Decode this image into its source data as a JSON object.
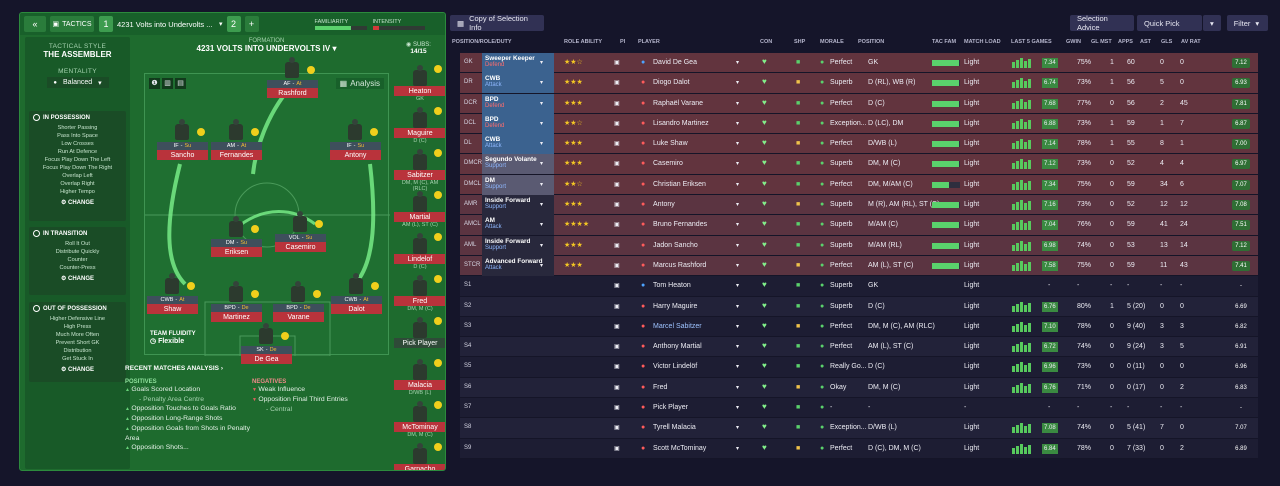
{
  "top": {
    "tactics": "TACTICS",
    "slot1": "1",
    "tactic_name": "4231 Volts into Undervolts ...",
    "slot2": "2",
    "familiarity": "FAMILIARITY",
    "intensity": "INTENSITY"
  },
  "rail": {
    "style_label": "TACTICAL STYLE",
    "style": "THE ASSEMBLER",
    "mentality_label": "MENTALITY",
    "mentality": "Balanced",
    "possession": {
      "title": "IN POSSESSION",
      "items": [
        "Shorter Passing",
        "Pass Into Space",
        "Low Crosses",
        "Run At Defence",
        "Focus Play Down The Left",
        "Focus Play Down The Right",
        "Overlap Left",
        "Overlap Right",
        "Higher Tempo"
      ]
    },
    "transition": {
      "title": "IN TRANSITION",
      "items": [
        "Roll It Out",
        "Distribute Quickly",
        "Counter",
        "Counter-Press"
      ]
    },
    "out": {
      "title": "OUT OF POSSESSION",
      "items": [
        "Higher Defensive Line",
        "High Press",
        "Much More Often",
        "Prevent Short GK",
        "Distribution",
        "Get Stuck In"
      ]
    },
    "change": "CHANGE"
  },
  "pitch": {
    "formation_label": "FORMATION",
    "formation": "4231 VOLTS INTO UNDERVOLTS IV",
    "subs_label": "SUBS:",
    "subs": "14/15",
    "analysis": "Analysis",
    "fluidity_label": "TEAM FLUIDITY",
    "fluidity": "Flexible",
    "players": [
      {
        "role": "AF",
        "duty": "At",
        "name": "Rashford"
      },
      {
        "role": "IF",
        "duty": "Su",
        "name": "Sancho"
      },
      {
        "role": "AM",
        "duty": "At",
        "name": "Fernandes"
      },
      {
        "role": "IF",
        "duty": "Su",
        "name": "Antony"
      },
      {
        "role": "DM",
        "duty": "Su",
        "name": "Eriksen"
      },
      {
        "role": "VOL",
        "duty": "Su",
        "name": "Casemiro"
      },
      {
        "role": "CWB",
        "duty": "At",
        "name": "Shaw"
      },
      {
        "role": "BPD",
        "duty": "De",
        "name": "Martinez"
      },
      {
        "role": "BPD",
        "duty": "De",
        "name": "Varane"
      },
      {
        "role": "CWB",
        "duty": "At",
        "name": "Dalot"
      },
      {
        "role": "SK",
        "duty": "De",
        "name": "De Gea"
      }
    ]
  },
  "subs": [
    {
      "name": "Heaton",
      "pos": "GK"
    },
    {
      "name": "Maguire",
      "pos": "D (C)"
    },
    {
      "name": "Sabitzer",
      "pos": "DM, M (C), AM (RLC)"
    },
    {
      "name": "Martial",
      "pos": "AM (L), ST (C)"
    },
    {
      "name": "Lindelof",
      "pos": "D (C)"
    },
    {
      "name": "Fred",
      "pos": "DM, M (C)"
    },
    {
      "name": "Pick Player",
      "pos": ""
    },
    {
      "name": "Malacia",
      "pos": "D/WB (L)"
    },
    {
      "name": "McTominay",
      "pos": "DM, M (C)"
    },
    {
      "name": "Garnacho",
      "pos": ""
    }
  ],
  "analysis": {
    "title": "RECENT MATCHES ANALYSIS",
    "pos_label": "POSITIVES",
    "neg_label": "NEGATIVES",
    "positives": [
      "Goals Scored Location",
      "- Penalty Area Centre",
      "Opposition Touches to Goals Ratio",
      "Opposition Long-Range Shots",
      "Opposition Goals from Shots in Penalty Area",
      "Opposition Shots..."
    ],
    "negatives": [
      "Weak Influence",
      "Opposition Final Third Entries",
      "- Central"
    ]
  },
  "rtoolbar": {
    "view": "Copy of Selection Info",
    "advice": "Selection Advice",
    "quick": "Quick Pick",
    "filter": "Filter"
  },
  "headers": [
    "POSITION/ROLE/DUTY",
    "ROLE ABILITY",
    "PI",
    "PLAYER",
    "CON",
    "SHP",
    "MORALE",
    "POSITION",
    "TAC FAM",
    "MATCH LOAD",
    "LAST 5 GAMES",
    "GWIN",
    "GL MST",
    "APPS",
    "AST",
    "GLS",
    "AV RAT"
  ],
  "rows": [
    {
      "pos": "GK",
      "role": "Sweeper Keeper",
      "duty": "Defend",
      "stars": "★★☆",
      "player": "David De Gea",
      "morale": "Perfect",
      "position": "GK",
      "load": "Light",
      "gwin": "75%",
      "glmst": "1",
      "apps": "60",
      "ast": "0",
      "gls": "0",
      "avrat": "7.12",
      "form": "7.34"
    },
    {
      "pos": "DR",
      "role": "CWB",
      "duty": "Attack",
      "stars": "★★★",
      "player": "Diogo Dalot",
      "morale": "Superb",
      "position": "D (RL), WB (R)",
      "load": "Light",
      "gwin": "73%",
      "glmst": "1",
      "apps": "56",
      "ast": "5",
      "gls": "0",
      "avrat": "6.93",
      "form": "6.74"
    },
    {
      "pos": "DCR",
      "role": "BPD",
      "duty": "Defend",
      "stars": "★★★",
      "player": "Raphaël Varane",
      "morale": "Perfect",
      "position": "D (C)",
      "load": "Light",
      "gwin": "77%",
      "glmst": "0",
      "apps": "56",
      "ast": "2",
      "gls": "45",
      "avrat": "7.81",
      "form": "7.68"
    },
    {
      "pos": "DCL",
      "role": "BPD",
      "duty": "Defend",
      "stars": "★★☆",
      "player": "Lisandro Martinez",
      "morale": "Exception...",
      "position": "D (LC), DM",
      "load": "Light",
      "gwin": "73%",
      "glmst": "1",
      "apps": "59",
      "ast": "1",
      "gls": "7",
      "avrat": "6.87",
      "form": "6.88"
    },
    {
      "pos": "DL",
      "role": "CWB",
      "duty": "Attack",
      "stars": "★★★",
      "player": "Luke Shaw",
      "morale": "Perfect",
      "position": "D/WB (L)",
      "load": "Light",
      "gwin": "78%",
      "glmst": "1",
      "apps": "55",
      "ast": "8",
      "gls": "1",
      "avrat": "7.00",
      "form": "7.14"
    },
    {
      "pos": "DMCR",
      "role": "Segundo Volante",
      "duty": "Support",
      "stars": "★★★",
      "player": "Casemiro",
      "morale": "Superb",
      "position": "DM, M (C)",
      "load": "Light",
      "gwin": "73%",
      "glmst": "0",
      "apps": "52",
      "ast": "4",
      "gls": "4",
      "avrat": "6.97",
      "form": "7.12"
    },
    {
      "pos": "DMCL",
      "role": "DM",
      "duty": "Support",
      "stars": "★★☆",
      "player": "Christian Eriksen",
      "morale": "Perfect",
      "position": "DM, M/AM (C)",
      "load": "Light",
      "gwin": "75%",
      "glmst": "0",
      "apps": "59",
      "ast": "34",
      "gls": "6",
      "avrat": "7.07",
      "form": "7.34"
    },
    {
      "pos": "AMR",
      "role": "Inside Forward",
      "duty": "Support",
      "stars": "★★★",
      "player": "Antony",
      "morale": "Superb",
      "position": "M (R), AM (RL), ST (C)",
      "load": "Light",
      "gwin": "73%",
      "glmst": "0",
      "apps": "52",
      "ast": "12",
      "gls": "12",
      "avrat": "7.08",
      "form": "7.16"
    },
    {
      "pos": "AMCL",
      "role": "AM",
      "duty": "Attack",
      "stars": "★★★★",
      "player": "Bruno Fernandes",
      "morale": "Superb",
      "position": "M/AM (C)",
      "load": "Light",
      "gwin": "76%",
      "glmst": "0",
      "apps": "59",
      "ast": "41",
      "gls": "24",
      "avrat": "7.51",
      "form": "7.04"
    },
    {
      "pos": "AML",
      "role": "Inside Forward",
      "duty": "Support",
      "stars": "★★★",
      "player": "Jadon Sancho",
      "morale": "Superb",
      "position": "M/AM (RL)",
      "load": "Light",
      "gwin": "74%",
      "glmst": "0",
      "apps": "53",
      "ast": "13",
      "gls": "14",
      "avrat": "7.12",
      "form": "6.98"
    },
    {
      "pos": "STCR",
      "role": "Advanced Forward",
      "duty": "Attack",
      "stars": "★★★",
      "player": "Marcus Rashford",
      "morale": "Perfect",
      "position": "AM (L), ST (C)",
      "load": "Light",
      "gwin": "75%",
      "glmst": "0",
      "apps": "59",
      "ast": "11",
      "gls": "43",
      "avrat": "7.41",
      "form": "7.58"
    },
    {
      "pos": "S1",
      "role": "",
      "duty": "",
      "stars": "",
      "player": "Tom Heaton",
      "morale": "Superb",
      "position": "GK",
      "load": "Light",
      "gwin": "-",
      "glmst": "-",
      "apps": "-",
      "ast": "-",
      "gls": "-",
      "avrat": "-",
      "form": "-"
    },
    {
      "pos": "S2",
      "role": "",
      "duty": "",
      "stars": "",
      "player": "Harry Maguire",
      "morale": "Superb",
      "position": "D (C)",
      "load": "Light",
      "gwin": "80%",
      "glmst": "1",
      "apps": "5 (20)",
      "ast": "0",
      "gls": "0",
      "avrat": "6.69",
      "form": "6.76"
    },
    {
      "pos": "S3",
      "role": "",
      "duty": "",
      "stars": "",
      "player": "Marcel Sabitzer",
      "morale": "Perfect",
      "position": "DM, M (C), AM (RLC)",
      "load": "Light",
      "gwin": "78%",
      "glmst": "0",
      "apps": "9 (40)",
      "ast": "3",
      "gls": "3",
      "avrat": "6.82",
      "form": "7.10"
    },
    {
      "pos": "S4",
      "role": "",
      "duty": "",
      "stars": "",
      "player": "Anthony Martial",
      "morale": "Perfect",
      "position": "AM (L), ST (C)",
      "load": "Light",
      "gwin": "74%",
      "glmst": "0",
      "apps": "9 (24)",
      "ast": "3",
      "gls": "5",
      "avrat": "6.91",
      "form": "6.72"
    },
    {
      "pos": "S5",
      "role": "",
      "duty": "",
      "stars": "",
      "player": "Victor Lindelöf",
      "morale": "Really Go...",
      "position": "D (C)",
      "load": "Light",
      "gwin": "73%",
      "glmst": "0",
      "apps": "0 (11)",
      "ast": "0",
      "gls": "0",
      "avrat": "6.96",
      "form": "6.96"
    },
    {
      "pos": "S6",
      "role": "",
      "duty": "",
      "stars": "",
      "player": "Fred",
      "morale": "Okay",
      "position": "DM, M (C)",
      "load": "Light",
      "gwin": "71%",
      "glmst": "0",
      "apps": "0 (17)",
      "ast": "0",
      "gls": "2",
      "avrat": "6.83",
      "form": "6.76"
    },
    {
      "pos": "S7",
      "role": "",
      "duty": "",
      "stars": "",
      "player": "Pick Player",
      "morale": "-",
      "position": "-",
      "load": "-",
      "gwin": "-",
      "glmst": "-",
      "apps": "-",
      "ast": "-",
      "gls": "-",
      "avrat": "-",
      "form": "-"
    },
    {
      "pos": "S8",
      "role": "",
      "duty": "",
      "stars": "",
      "player": "Tyrell Malacia",
      "morale": "Exception...",
      "position": "D/WB (L)",
      "load": "Light",
      "gwin": "74%",
      "glmst": "0",
      "apps": "5 (41)",
      "ast": "7",
      "gls": "0",
      "avrat": "7.07",
      "form": "7.08"
    },
    {
      "pos": "S9",
      "role": "",
      "duty": "",
      "stars": "",
      "player": "Scott McTominay",
      "morale": "Perfect",
      "position": "D (C), DM, M (C)",
      "load": "Light",
      "gwin": "78%",
      "glmst": "0",
      "apps": "7 (33)",
      "ast": "0",
      "gls": "2",
      "avrat": "6.89",
      "form": "6.84"
    }
  ],
  "colors": {
    "accent": "#2c8a3d",
    "defend": "#b9333b",
    "support": "#3f76b7",
    "attack": "#5e3f8e"
  }
}
